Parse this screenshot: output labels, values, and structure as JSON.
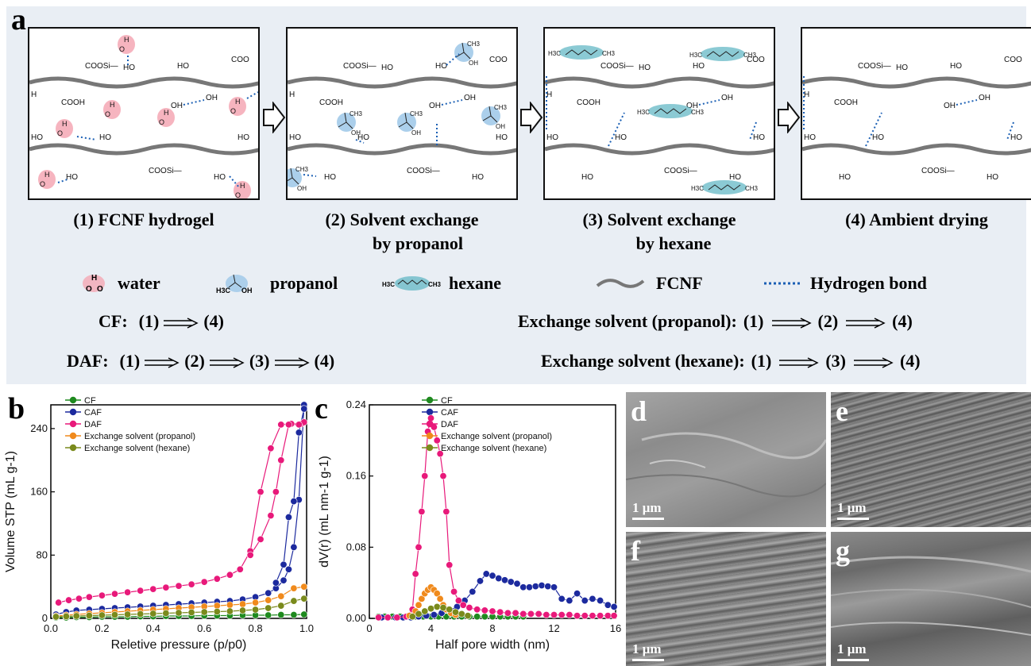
{
  "panels": {
    "a": "a",
    "b": "b",
    "c": "c",
    "d": "d",
    "e": "e",
    "f": "f",
    "g": "g"
  },
  "scheme": {
    "stages": [
      {
        "caption_l1": "(1)  FCNF hydrogel",
        "caption_l2": ""
      },
      {
        "caption_l1": "(2)  Solvent exchange",
        "caption_l2": "by propanol"
      },
      {
        "caption_l1": "(3) Solvent exchange",
        "caption_l2": "by hexane"
      },
      {
        "caption_l1": "(4)  Ambient drying",
        "caption_l2": ""
      }
    ],
    "labels": {
      "coosi": "COOSi—",
      "cooh": "COOH",
      "oh": "OH",
      "ho": "HO",
      "h": "H",
      "h3c": "H3C",
      "ch3": "CH3"
    },
    "legend": {
      "water": "water",
      "propanol": "propanol",
      "hexane": "hexane",
      "fcnf": "FCNF",
      "hbond": "Hydrogen bond"
    },
    "process": {
      "cf_label": "CF:",
      "cf_steps": [
        "(1)",
        "(4)"
      ],
      "daf_label": "DAF:",
      "daf_steps": [
        "(1)",
        "(2)",
        "(3)",
        "(4)"
      ],
      "prop_label": "Exchange solvent (propanol):",
      "prop_steps": [
        "(1)",
        "(2)",
        "(4)"
      ],
      "hex_label": "Exchange solvent (hexane):",
      "hex_steps": [
        "(1)",
        "(3)",
        "(4)"
      ]
    },
    "colors": {
      "fiber": "#777777",
      "hbond": "#1a5fb4",
      "water_glow": "#f4a7b4",
      "prop_glow": "#9cc7e8",
      "hex_glow": "#5ab4c2",
      "panel_bg": "#e9eef4"
    }
  },
  "chart_data": [
    {
      "type": "scatter",
      "xlabel": "Reletive pressure (p/p0)",
      "ylabel": "Volume STP (mL g-1)",
      "xlim": [
        0,
        1.0
      ],
      "ylim": [
        0,
        270
      ],
      "xticks": [
        "0.0",
        "0.2",
        "0.4",
        "0.6",
        "0.8",
        "1.0"
      ],
      "yticks": [
        "0",
        "80",
        "160",
        "240"
      ],
      "legend_position": "top-left",
      "series": [
        {
          "name": "CF",
          "color": "#1f8a1f",
          "x": [
            0.02,
            0.06,
            0.1,
            0.15,
            0.2,
            0.25,
            0.3,
            0.35,
            0.4,
            0.45,
            0.5,
            0.55,
            0.6,
            0.65,
            0.7,
            0.75,
            0.8,
            0.85,
            0.9,
            0.95,
            0.99
          ],
          "y": [
            1,
            1,
            1.5,
            1.5,
            2,
            2,
            2,
            2.5,
            2.5,
            3,
            3,
            3,
            3.5,
            3.5,
            3.5,
            4,
            4,
            4,
            4.5,
            4.5,
            5
          ]
        },
        {
          "name": "CAF",
          "color": "#1c2a9e",
          "x": [
            0.02,
            0.06,
            0.1,
            0.15,
            0.2,
            0.25,
            0.3,
            0.35,
            0.4,
            0.45,
            0.5,
            0.55,
            0.6,
            0.65,
            0.7,
            0.75,
            0.8,
            0.85,
            0.88,
            0.91,
            0.93,
            0.95,
            0.97,
            0.99,
            0.99,
            0.97,
            0.95,
            0.93,
            0.91,
            0.88
          ],
          "y": [
            5,
            8,
            10,
            11,
            12,
            13,
            14,
            15,
            16,
            17,
            18,
            19,
            20,
            21,
            22,
            24,
            27,
            32,
            38,
            48,
            62,
            90,
            150,
            270,
            265,
            235,
            148,
            128,
            68,
            45
          ]
        },
        {
          "name": "DAF",
          "color": "#e8197a",
          "x": [
            0.03,
            0.07,
            0.11,
            0.15,
            0.2,
            0.25,
            0.3,
            0.35,
            0.4,
            0.45,
            0.5,
            0.55,
            0.6,
            0.65,
            0.7,
            0.74,
            0.78,
            0.82,
            0.86,
            0.9,
            0.94,
            0.98,
            0.99,
            0.97,
            0.93,
            0.9,
            0.88,
            0.86,
            0.82,
            0.78
          ],
          "y": [
            20,
            23,
            25,
            27,
            29,
            31,
            33,
            35,
            37,
            39,
            41,
            43,
            46,
            50,
            55,
            62,
            85,
            160,
            215,
            245,
            246,
            246,
            248,
            245,
            245,
            200,
            160,
            130,
            100,
            80
          ]
        },
        {
          "name": "Exchange solvent (propanol)",
          "color": "#f08a1c",
          "x": [
            0.02,
            0.06,
            0.1,
            0.15,
            0.2,
            0.25,
            0.3,
            0.35,
            0.4,
            0.45,
            0.5,
            0.55,
            0.6,
            0.65,
            0.7,
            0.75,
            0.8,
            0.85,
            0.9,
            0.95,
            0.99
          ],
          "y": [
            3,
            4,
            5,
            6,
            7,
            8,
            9,
            10,
            11,
            12,
            13,
            14,
            15,
            16,
            17,
            18,
            20,
            23,
            28,
            38,
            40
          ]
        },
        {
          "name": "Exchange solvent (hexane)",
          "color": "#7a8a1c",
          "x": [
            0.02,
            0.06,
            0.1,
            0.15,
            0.2,
            0.25,
            0.3,
            0.35,
            0.4,
            0.45,
            0.5,
            0.55,
            0.6,
            0.65,
            0.7,
            0.75,
            0.8,
            0.85,
            0.9,
            0.95,
            0.99
          ],
          "y": [
            2,
            2.5,
            3,
            3.5,
            4,
            4.5,
            5,
            5.5,
            6,
            6.5,
            7,
            7.5,
            8,
            8.5,
            9,
            10,
            11,
            13,
            16,
            22,
            25
          ]
        }
      ]
    },
    {
      "type": "scatter",
      "xlabel": "Half pore width (nm)",
      "ylabel": "dV(r) (mL nm-1 g-1)",
      "xlim": [
        0,
        16
      ],
      "ylim": [
        0,
        0.24
      ],
      "xticks": [
        "0",
        "4",
        "8",
        "12",
        "16"
      ],
      "yticks": [
        "0.00",
        "0.08",
        "0.16",
        "0.24"
      ],
      "legend_position": "top-right",
      "series": [
        {
          "name": "CF",
          "color": "#1f8a1f",
          "x": [
            0.6,
            1.0,
            1.5,
            2.0,
            2.5,
            3.0,
            3.5,
            4.0,
            4.5,
            5.0,
            5.5,
            6.0,
            6.5,
            7.0,
            7.5,
            8.0,
            8.5,
            9.0,
            9.5,
            10.0
          ],
          "y": [
            0.002,
            0.002,
            0.002,
            0.002,
            0.002,
            0.002,
            0.002,
            0.002,
            0.002,
            0.002,
            0.002,
            0.002,
            0.002,
            0.002,
            0.002,
            0.002,
            0.002,
            0.002,
            0.002,
            0.002
          ]
        },
        {
          "name": "CAF",
          "color": "#1c2a9e",
          "x": [
            0.8,
            1.2,
            1.7,
            2.2,
            2.7,
            3.2,
            3.7,
            4.2,
            4.7,
            5.2,
            5.7,
            6.2,
            6.7,
            7.2,
            7.6,
            8.0,
            8.4,
            8.8,
            9.2,
            9.6,
            10.0,
            10.4,
            10.8,
            11.2,
            11.6,
            12.0,
            12.5,
            13.0,
            13.5,
            14.0,
            14.5,
            15.0,
            15.5,
            15.9
          ],
          "y": [
            0.001,
            0.001,
            0.001,
            0.001,
            0.001,
            0.002,
            0.003,
            0.004,
            0.006,
            0.009,
            0.013,
            0.02,
            0.03,
            0.042,
            0.05,
            0.048,
            0.045,
            0.043,
            0.041,
            0.039,
            0.035,
            0.035,
            0.036,
            0.037,
            0.036,
            0.035,
            0.022,
            0.02,
            0.028,
            0.02,
            0.022,
            0.02,
            0.015,
            0.013
          ]
        },
        {
          "name": "DAF",
          "color": "#e8197a",
          "x": [
            0.6,
            1.2,
            1.8,
            2.4,
            2.8,
            3.0,
            3.2,
            3.4,
            3.6,
            3.8,
            4.0,
            4.2,
            4.4,
            4.6,
            4.8,
            5.0,
            5.2,
            5.5,
            5.8,
            6.1,
            6.5,
            7.0,
            7.5,
            8.0,
            8.5,
            9.0,
            9.5,
            10.0,
            10.5,
            11.0,
            11.5,
            12.0,
            12.5,
            13.0,
            13.5,
            14.0,
            14.5,
            15.0,
            15.5,
            15.9
          ],
          "y": [
            0.001,
            0.001,
            0.001,
            0.002,
            0.01,
            0.05,
            0.08,
            0.12,
            0.16,
            0.21,
            0.225,
            0.215,
            0.2,
            0.185,
            0.16,
            0.12,
            0.06,
            0.03,
            0.02,
            0.015,
            0.012,
            0.01,
            0.009,
            0.008,
            0.007,
            0.006,
            0.006,
            0.005,
            0.005,
            0.005,
            0.004,
            0.004,
            0.004,
            0.004,
            0.003,
            0.003,
            0.003,
            0.003,
            0.003,
            0.003
          ]
        },
        {
          "name": "Exchange solvent (propanol)",
          "color": "#f08a1c",
          "x": [
            2.6,
            3.0,
            3.2,
            3.4,
            3.6,
            3.8,
            4.0,
            4.2,
            4.4,
            4.6,
            4.8,
            5.0,
            5.3,
            5.6
          ],
          "y": [
            0.003,
            0.008,
            0.015,
            0.022,
            0.028,
            0.032,
            0.035,
            0.032,
            0.028,
            0.022,
            0.015,
            0.01,
            0.006,
            0.004
          ]
        },
        {
          "name": "Exchange solvent (hexane)",
          "color": "#7a8a1c",
          "x": [
            2.8,
            3.2,
            3.6,
            4.0,
            4.4,
            4.8,
            5.2,
            5.6,
            6.0,
            6.4
          ],
          "y": [
            0.002,
            0.005,
            0.008,
            0.011,
            0.013,
            0.012,
            0.01,
            0.007,
            0.005,
            0.003
          ]
        }
      ]
    }
  ],
  "sem": {
    "scale_label": "1 μm"
  }
}
